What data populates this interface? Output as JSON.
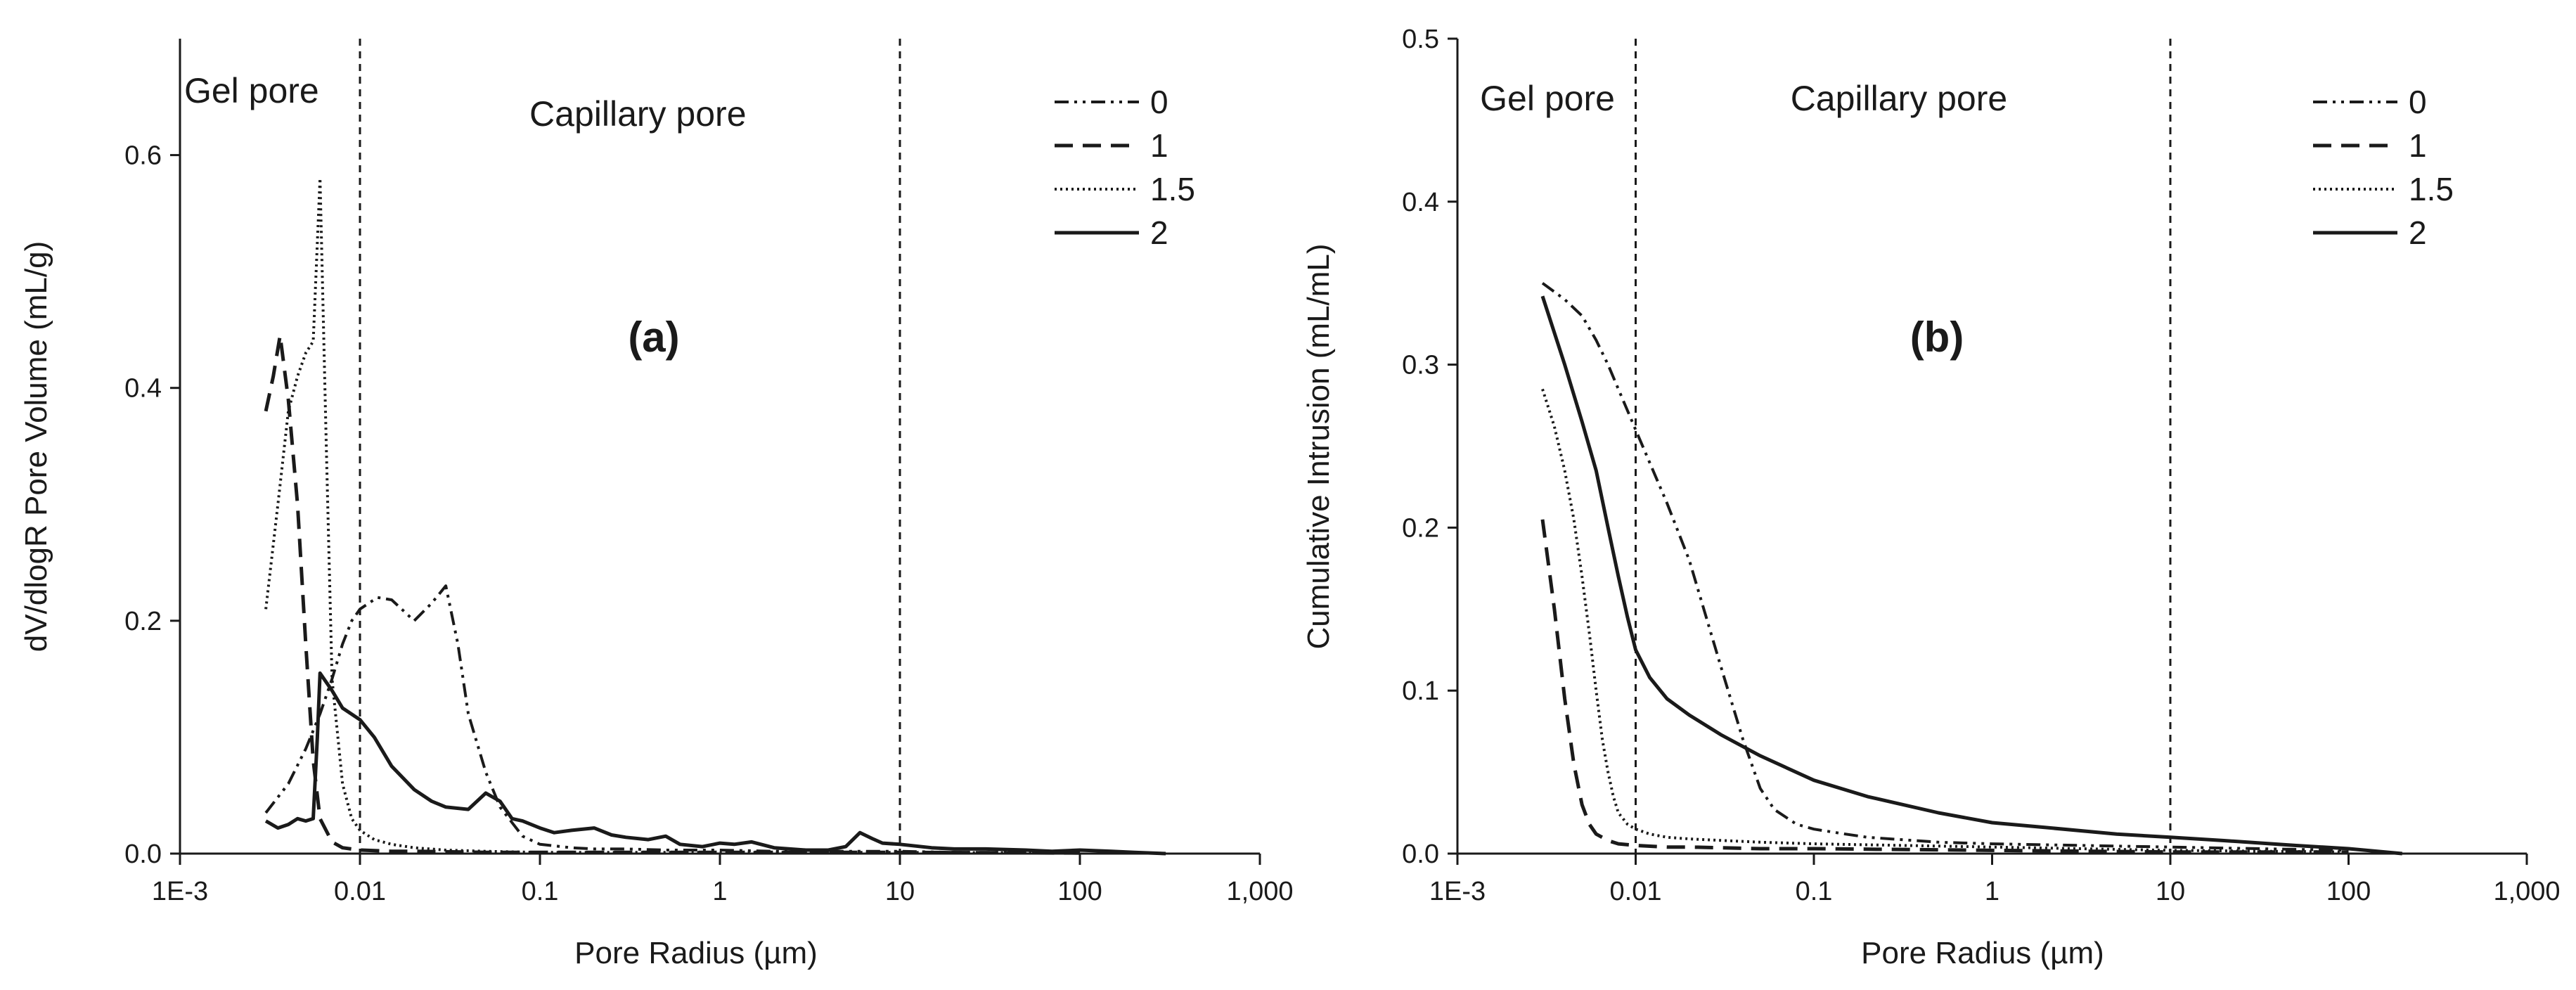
{
  "chart_data": [
    {
      "panel": "a",
      "type": "line",
      "panel_label": "(a)",
      "xlabel": "Pore Radius (µm)",
      "ylabel": "dV/dlogR Pore Volume (mL/g)",
      "xscale": "log",
      "xlim": [
        0.001,
        1000
      ],
      "ylim": [
        0,
        0.7
      ],
      "x_ticks": [
        0.001,
        0.01,
        0.1,
        1,
        10,
        100,
        1000
      ],
      "x_tick_labels": [
        "1E-3",
        "0.01",
        "0.1",
        "1",
        "10",
        "100",
        "1,000"
      ],
      "y_ticks": [
        0,
        0.2,
        0.4,
        0.6
      ],
      "y_tick_labels": [
        "0.0",
        "0.2",
        "0.4",
        "0.6"
      ],
      "dividers": [
        0.01,
        10
      ],
      "regions": [
        {
          "label": "Gel pore",
          "x": 0.0025,
          "y": 0.645
        },
        {
          "label": "Capillary pore",
          "x": 0.35,
          "y": 0.625
        }
      ],
      "legend_position": "top-right",
      "series": [
        {
          "name": "0",
          "style": "dashdotdot",
          "x": [
            0.003,
            0.004,
            0.005,
            0.006,
            0.007,
            0.008,
            0.009,
            0.01,
            0.0125,
            0.015,
            0.02,
            0.025,
            0.03,
            0.035,
            0.04,
            0.05,
            0.06,
            0.08,
            0.1,
            0.15,
            0.2,
            0.3,
            0.5,
            1,
            2,
            5,
            10,
            20,
            50,
            100
          ],
          "y": [
            0.035,
            0.06,
            0.09,
            0.12,
            0.15,
            0.18,
            0.2,
            0.21,
            0.22,
            0.218,
            0.2,
            0.215,
            0.23,
            0.18,
            0.12,
            0.07,
            0.04,
            0.015,
            0.008,
            0.005,
            0.004,
            0.004,
            0.003,
            0.003,
            0.002,
            0.002,
            0.002,
            0.001,
            0.001,
            0.001
          ]
        },
        {
          "name": "1",
          "style": "dashed",
          "x": [
            0.003,
            0.0033,
            0.0036,
            0.004,
            0.0045,
            0.005,
            0.0055,
            0.006,
            0.007,
            0.008,
            0.01,
            0.015,
            0.02,
            0.05,
            0.1,
            0.3,
            1,
            10,
            100
          ],
          "y": [
            0.38,
            0.41,
            0.445,
            0.39,
            0.3,
            0.18,
            0.08,
            0.03,
            0.01,
            0.005,
            0.003,
            0.002,
            0.002,
            0.001,
            0.001,
            0.001,
            0.001,
            0.001,
            0.0005
          ]
        },
        {
          "name": "1.5",
          "style": "dotted",
          "x": [
            0.003,
            0.0035,
            0.004,
            0.0045,
            0.005,
            0.0055,
            0.006,
            0.0065,
            0.007,
            0.008,
            0.009,
            0.01,
            0.012,
            0.015,
            0.02,
            0.03,
            0.05,
            0.1,
            1,
            10,
            100
          ],
          "y": [
            0.21,
            0.3,
            0.38,
            0.41,
            0.43,
            0.44,
            0.58,
            0.35,
            0.15,
            0.06,
            0.03,
            0.02,
            0.012,
            0.008,
            0.005,
            0.003,
            0.002,
            0.001,
            0.001,
            0.001,
            0.0005
          ]
        },
        {
          "name": "2",
          "style": "solid",
          "x": [
            0.003,
            0.0035,
            0.004,
            0.0045,
            0.005,
            0.0055,
            0.0058,
            0.006,
            0.007,
            0.008,
            0.01,
            0.012,
            0.015,
            0.02,
            0.025,
            0.03,
            0.04,
            0.05,
            0.06,
            0.07,
            0.08,
            0.1,
            0.12,
            0.15,
            0.2,
            0.25,
            0.3,
            0.4,
            0.5,
            0.6,
            0.8,
            1,
            1.2,
            1.5,
            2,
            3,
            4,
            5,
            6,
            7,
            8,
            10,
            15,
            20,
            30,
            50,
            70,
            100,
            150,
            200,
            300
          ],
          "y": [
            0.028,
            0.022,
            0.025,
            0.03,
            0.028,
            0.03,
            0.1,
            0.155,
            0.14,
            0.125,
            0.115,
            0.1,
            0.075,
            0.055,
            0.045,
            0.04,
            0.038,
            0.052,
            0.045,
            0.03,
            0.028,
            0.022,
            0.018,
            0.02,
            0.022,
            0.016,
            0.014,
            0.012,
            0.015,
            0.008,
            0.006,
            0.009,
            0.008,
            0.01,
            0.005,
            0.003,
            0.003,
            0.006,
            0.018,
            0.013,
            0.009,
            0.008,
            0.005,
            0.004,
            0.004,
            0.003,
            0.002,
            0.003,
            0.002,
            0.001,
            0.0
          ]
        }
      ]
    },
    {
      "panel": "b",
      "type": "line",
      "panel_label": "(b)",
      "xlabel": "Pore Radius (µm)",
      "ylabel": "Cumulative Intrusion (mL/mL)",
      "xscale": "log",
      "xlim": [
        0.001,
        1000
      ],
      "ylim": [
        0,
        0.5
      ],
      "x_ticks": [
        0.001,
        0.01,
        0.1,
        1,
        10,
        100,
        1000
      ],
      "x_tick_labels": [
        "1E-3",
        "0.01",
        "0.1",
        "1",
        "10",
        "100",
        "1,000"
      ],
      "y_ticks": [
        0,
        0.1,
        0.2,
        0.3,
        0.4,
        0.5
      ],
      "y_tick_labels": [
        "0.0",
        "0.1",
        "0.2",
        "0.3",
        "0.4",
        "0.5"
      ],
      "dividers": [
        0.01,
        10
      ],
      "regions": [
        {
          "label": "Gel pore",
          "x": 0.0032,
          "y": 0.456
        },
        {
          "label": "Capillary pore",
          "x": 0.3,
          "y": 0.456
        }
      ],
      "legend_position": "top-right",
      "series": [
        {
          "name": "0",
          "style": "dashdotdot",
          "x": [
            0.003,
            0.004,
            0.005,
            0.006,
            0.007,
            0.008,
            0.01,
            0.015,
            0.02,
            0.03,
            0.04,
            0.05,
            0.06,
            0.08,
            0.1,
            0.15,
            0.2,
            0.5,
            1,
            10,
            100
          ],
          "y": [
            0.35,
            0.34,
            0.33,
            0.315,
            0.3,
            0.285,
            0.26,
            0.215,
            0.18,
            0.115,
            0.07,
            0.04,
            0.027,
            0.018,
            0.015,
            0.012,
            0.01,
            0.007,
            0.006,
            0.004,
            0.002
          ]
        },
        {
          "name": "1",
          "style": "dashed",
          "x": [
            0.003,
            0.0035,
            0.004,
            0.0045,
            0.005,
            0.0055,
            0.006,
            0.007,
            0.008,
            0.01,
            0.015,
            0.02,
            0.05,
            0.1,
            1,
            10,
            100
          ],
          "y": [
            0.205,
            0.15,
            0.095,
            0.055,
            0.03,
            0.018,
            0.012,
            0.008,
            0.006,
            0.005,
            0.004,
            0.004,
            0.003,
            0.003,
            0.002,
            0.001,
            0.001
          ]
        },
        {
          "name": "1.5",
          "style": "dotted",
          "x": [
            0.003,
            0.0035,
            0.004,
            0.0045,
            0.005,
            0.0055,
            0.006,
            0.0065,
            0.007,
            0.0075,
            0.008,
            0.009,
            0.01,
            0.012,
            0.015,
            0.02,
            0.05,
            0.1,
            1,
            10,
            100
          ],
          "y": [
            0.285,
            0.262,
            0.235,
            0.205,
            0.17,
            0.135,
            0.1,
            0.07,
            0.05,
            0.035,
            0.025,
            0.018,
            0.015,
            0.012,
            0.01,
            0.009,
            0.007,
            0.006,
            0.004,
            0.002,
            0.001
          ]
        },
        {
          "name": "2",
          "style": "solid",
          "x": [
            0.003,
            0.004,
            0.005,
            0.006,
            0.007,
            0.008,
            0.009,
            0.01,
            0.012,
            0.015,
            0.02,
            0.03,
            0.05,
            0.1,
            0.2,
            0.5,
            1,
            2,
            5,
            10,
            20,
            50,
            100,
            200
          ],
          "y": [
            0.342,
            0.3,
            0.265,
            0.235,
            0.2,
            0.17,
            0.145,
            0.125,
            0.108,
            0.095,
            0.085,
            0.073,
            0.06,
            0.045,
            0.035,
            0.025,
            0.019,
            0.016,
            0.012,
            0.01,
            0.008,
            0.005,
            0.003,
            0.0
          ]
        }
      ]
    }
  ]
}
